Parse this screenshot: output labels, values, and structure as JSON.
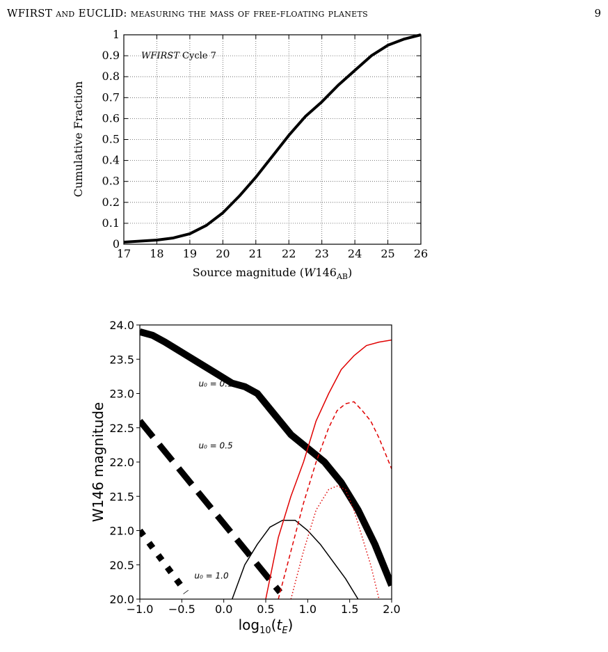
{
  "header": {
    "title_caps": "WFIRST",
    "title_and": "and",
    "title_caps2": "EUCLID",
    "title_rest": ": measuring the mass of free-floating planets",
    "page_number": "9"
  },
  "chart_data": [
    {
      "type": "line",
      "title": "",
      "annotation": {
        "italic": "WFIRST",
        "text": " Cycle 7"
      },
      "xlabel": "Source magnitude (W146AB)",
      "xlabel_parts": {
        "prefix": "Source magnitude (",
        "var": "W",
        "num": "146",
        "sub": "AB",
        "suffix": ")"
      },
      "ylabel": "Cumulative Fraction",
      "xlim": [
        17,
        26
      ],
      "ylim": [
        0,
        1
      ],
      "xticks": [
        17,
        18,
        19,
        20,
        21,
        22,
        23,
        24,
        25,
        26
      ],
      "yticks": [
        0,
        0.1,
        0.2,
        0.3,
        0.4,
        0.5,
        0.6,
        0.7,
        0.8,
        0.9,
        1
      ],
      "ytick_labels": [
        "0",
        "0.1",
        "0.2",
        "0.3",
        "0.4",
        "0.5",
        "0.6",
        "0.7",
        "0.8",
        "0.9",
        "1"
      ],
      "grid": true,
      "grid_style": "dotted",
      "series": [
        {
          "x": [
            17,
            17.5,
            18,
            18.5,
            19,
            19.5,
            20,
            20.5,
            21,
            21.5,
            22,
            22.5,
            23,
            23.5,
            24,
            24.5,
            25,
            25.5,
            26
          ],
          "y": [
            0.01,
            0.015,
            0.02,
            0.03,
            0.05,
            0.09,
            0.15,
            0.23,
            0.32,
            0.42,
            0.52,
            0.61,
            0.68,
            0.76,
            0.83,
            0.9,
            0.95,
            0.98,
            1.0
          ],
          "color": "#000000"
        }
      ]
    },
    {
      "type": "line",
      "title": "",
      "xlabel": "log10(tE)",
      "ylabel": "W146 magnitude",
      "xlim": [
        -1.0,
        2.0
      ],
      "ylim": [
        20.0,
        24.0
      ],
      "xticks": [
        -1.0,
        -0.5,
        0.0,
        0.5,
        1.0,
        1.5,
        2.0
      ],
      "xtick_labels": [
        "−1.0",
        "−0.5",
        "0.0",
        "0.5",
        "1.0",
        "1.5",
        "2.0"
      ],
      "yticks": [
        20.0,
        20.5,
        21.0,
        21.5,
        22.0,
        22.5,
        23.0,
        23.5,
        24.0
      ],
      "ytick_labels": [
        "20.0",
        "20.5",
        "21.0",
        "21.5",
        "22.0",
        "22.5",
        "23.0",
        "23.5",
        "24.0"
      ],
      "grid": false,
      "annotations": [
        {
          "text": "u₀ = 0.1",
          "x": -0.3,
          "y": 23.1
        },
        {
          "text": "u₀ = 0.5",
          "x": -0.3,
          "y": 22.2
        },
        {
          "text": "u₀ = 1.0",
          "x": -0.35,
          "y": 20.3
        }
      ],
      "series": [
        {
          "x": [
            -1.0,
            -0.85,
            -0.7,
            -0.5,
            -0.3,
            -0.1,
            0.1,
            0.25,
            0.4,
            0.6,
            0.8,
            1.0,
            1.2,
            1.4,
            1.6,
            1.8,
            2.0
          ],
          "y": [
            23.9,
            23.85,
            23.75,
            23.6,
            23.45,
            23.3,
            23.15,
            23.1,
            23.0,
            22.7,
            22.4,
            22.2,
            22.0,
            21.7,
            21.3,
            20.8,
            20.2
          ],
          "color": "#000000",
          "style": "solid",
          "width": "thick"
        },
        {
          "x": [
            -1.0,
            0.67
          ],
          "y": [
            22.6,
            20.1
          ],
          "color": "#000000",
          "style": "dashed",
          "width": "thick"
        },
        {
          "x": [
            -1.0,
            -0.45
          ],
          "y": [
            21.0,
            20.1
          ],
          "color": "#000000",
          "style": "dotted",
          "width": "thick"
        },
        {
          "x": [
            0.1,
            0.25,
            0.4,
            0.55,
            0.7,
            0.85,
            1.0,
            1.15,
            1.3,
            1.45,
            1.6
          ],
          "y": [
            20.0,
            20.5,
            20.8,
            21.05,
            21.15,
            21.15,
            21.0,
            20.8,
            20.55,
            20.3,
            20.0
          ],
          "color": "#000000",
          "style": "solid",
          "width": "thin"
        },
        {
          "x": [
            0.5,
            0.65,
            0.8,
            0.95,
            1.1,
            1.25,
            1.4,
            1.55,
            1.7,
            1.85,
            2.0
          ],
          "y": [
            20.0,
            20.9,
            21.5,
            22.0,
            22.6,
            23.0,
            23.35,
            23.55,
            23.7,
            23.75,
            23.78
          ],
          "color": "#e00000",
          "style": "solid",
          "width": "thin"
        },
        {
          "x": [
            0.65,
            0.8,
            0.95,
            1.1,
            1.25,
            1.35,
            1.45,
            1.55,
            1.65,
            1.75,
            1.85,
            1.95,
            2.0
          ],
          "y": [
            20.0,
            20.7,
            21.4,
            22.0,
            22.5,
            22.75,
            22.85,
            22.88,
            22.75,
            22.6,
            22.35,
            22.05,
            21.9
          ],
          "color": "#e00000",
          "style": "dashed",
          "width": "thin"
        },
        {
          "x": [
            0.8,
            0.95,
            1.1,
            1.25,
            1.35,
            1.45,
            1.55,
            1.65,
            1.75,
            1.85
          ],
          "y": [
            20.0,
            20.7,
            21.3,
            21.6,
            21.65,
            21.6,
            21.3,
            20.9,
            20.5,
            20.0
          ],
          "color": "#e00000",
          "style": "dotted",
          "width": "thin"
        }
      ]
    }
  ]
}
